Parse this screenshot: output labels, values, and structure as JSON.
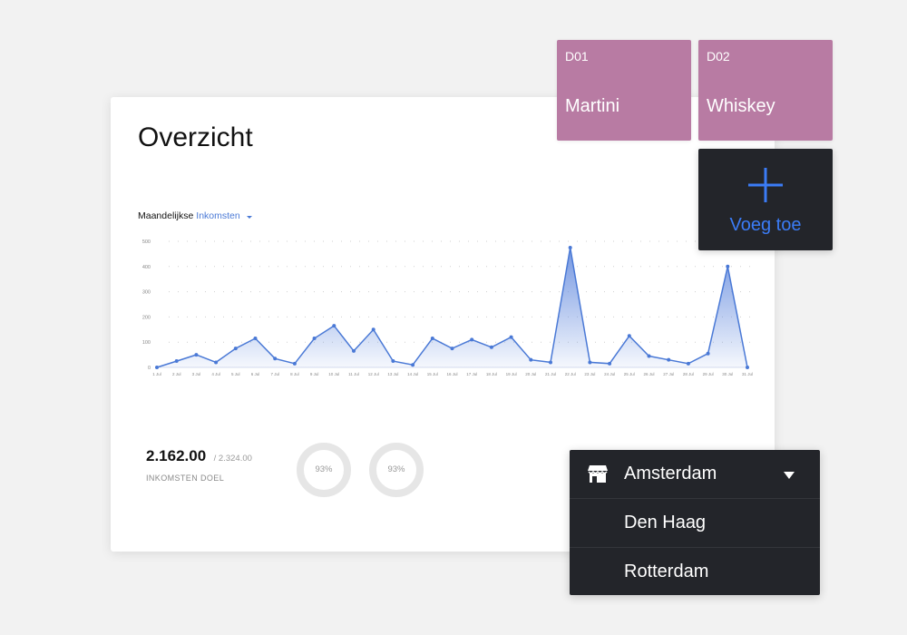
{
  "overview": {
    "title": "Overzicht",
    "chart_label_prefix": "Maandelijkse",
    "chart_label_metric": "Inkomsten",
    "stats": {
      "value": "2.162.00",
      "target": "/ 2.324.00",
      "caption": "INKOMSTEN DOEL"
    },
    "donuts": [
      {
        "percent": "93%"
      },
      {
        "percent": "93%"
      }
    ]
  },
  "tiles": [
    {
      "code": "D01",
      "name": "Martini"
    },
    {
      "code": "D02",
      "name": "Whiskey"
    }
  ],
  "add_button": {
    "label": "Voeg toe"
  },
  "location_dropdown": {
    "selected": "Amsterdam",
    "options": [
      "Den Haag",
      "Rotterdam"
    ]
  },
  "colors": {
    "accent": "#4a79d6",
    "tile": "#b87ba3",
    "dark_panel": "#23252a",
    "add_blue": "#3b7cf6"
  },
  "chart_data": {
    "type": "area",
    "x": [
      "1 Jul",
      "2 Jul",
      "3 Jul",
      "4 Jul",
      "5 Jul",
      "6 Jul",
      "7 Jul",
      "8 Jul",
      "9 Jul",
      "10 Jul",
      "11 Jul",
      "12 Jul",
      "13 Jul",
      "14 Jul",
      "15 Jul",
      "16 Jul",
      "17 Jul",
      "18 Jul",
      "19 Jul",
      "20 Jul",
      "21 Jul",
      "22 Jul",
      "23 Jul",
      "24 Jul",
      "25 Jul",
      "26 Jul",
      "27 Jul",
      "28 Jul",
      "29 Jul",
      "30 Jul",
      "31 Jul"
    ],
    "values": [
      0,
      25,
      50,
      20,
      75,
      115,
      35,
      15,
      115,
      165,
      65,
      150,
      25,
      10,
      115,
      75,
      110,
      80,
      120,
      30,
      20,
      475,
      20,
      15,
      125,
      45,
      30,
      15,
      55,
      400,
      0
    ],
    "yticks": [
      0,
      100,
      200,
      300,
      400,
      500
    ],
    "ylim": [
      0,
      500
    ],
    "grid": true
  }
}
